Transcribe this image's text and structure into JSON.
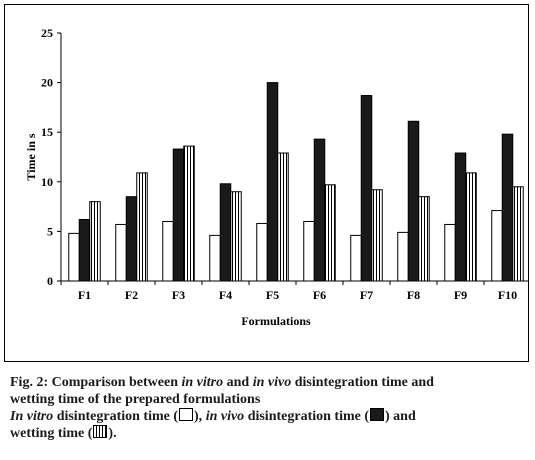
{
  "chart_data": {
    "type": "bar",
    "ylabel": "Time in s",
    "xlabel": "Formulations",
    "ylim": [
      0,
      25
    ],
    "yticks": [
      0,
      5,
      10,
      15,
      20,
      25
    ],
    "categories": [
      "F1",
      "F2",
      "F3",
      "F4",
      "F5",
      "F6",
      "F7",
      "F8",
      "F9",
      "F10"
    ],
    "series": [
      {
        "name": "In vitro disintegration time",
        "pattern": "open",
        "values": [
          4.8,
          5.7,
          6.0,
          4.6,
          5.8,
          6.0,
          4.6,
          4.9,
          5.7,
          7.1
        ]
      },
      {
        "name": "in vivo disintegration time",
        "pattern": "solid",
        "values": [
          6.2,
          8.5,
          13.3,
          9.8,
          20.0,
          14.3,
          18.7,
          16.1,
          12.9,
          14.8
        ]
      },
      {
        "name": "wetting time",
        "pattern": "striped",
        "values": [
          8.0,
          10.9,
          13.6,
          9.0,
          12.9,
          9.7,
          9.2,
          8.5,
          10.9,
          9.5
        ]
      }
    ],
    "grid": false,
    "legend": "none"
  },
  "caption": {
    "fig_label": "Fig. 2:",
    "line1_a": "Comparison between",
    "line1_b": "in vitro",
    "line1_c": "and",
    "line1_d": "in vivo",
    "line1_e": "disintegration time and",
    "line2": "wetting time of the prepared formulations",
    "line3_a": "In vitro",
    "line3_b": "disintegration time (",
    "line3_c": "),",
    "line3_d": "in vivo",
    "line3_e": "disintegration time (",
    "line3_f": ") and",
    "line4_a": "wetting time (",
    "line4_b": ")."
  },
  "colors": {
    "solid_bar": "#1a1a1a",
    "open_bar": "#ffffff",
    "stroke": "#000000"
  }
}
